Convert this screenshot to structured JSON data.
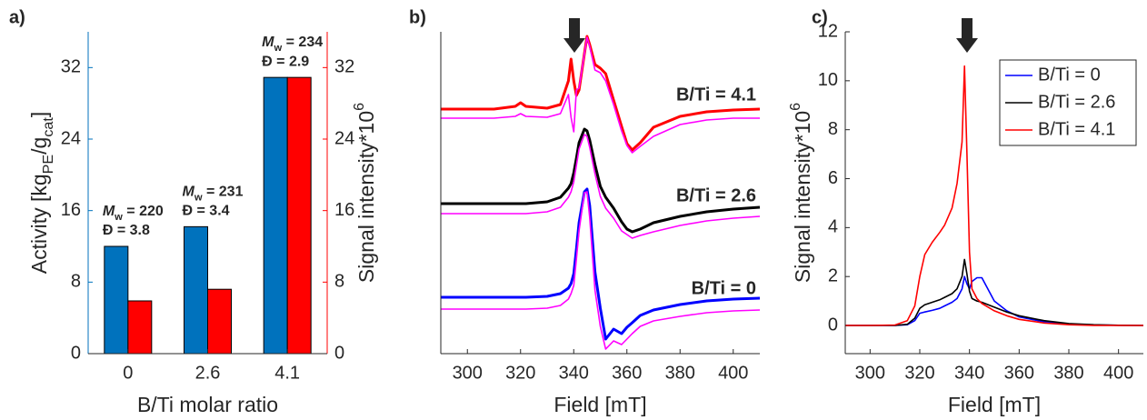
{
  "chart_data": [
    {
      "type": "bar",
      "panel_label": "a)",
      "categories": [
        "0",
        "2.6",
        "4.1"
      ],
      "xlabel": "B/Ti molar ratio",
      "ylabel": [
        {
          "text": "Activity [kg"
        },
        {
          "text": "PE",
          "sub": true
        },
        {
          "text": "/g"
        },
        {
          "text": "cat",
          "sub": true
        },
        {
          "text": "]"
        }
      ],
      "y2label": [
        {
          "text": "Signal intensity*10"
        },
        {
          "text": "6",
          "sup": true
        }
      ],
      "ycolor": "#0072bd",
      "y2color": "#ff0000",
      "ylim": [
        0,
        36
      ],
      "yticks": [
        0,
        8,
        16,
        24,
        32
      ],
      "y2lim": [
        0,
        36
      ],
      "y2ticks": [
        0,
        8,
        16,
        24,
        32
      ],
      "series": [
        {
          "color": "#0072bd",
          "values": [
            12,
            14.2,
            30.9
          ]
        },
        {
          "color": "#ff0000",
          "values": [
            5.9,
            7.2,
            30.9
          ],
          "axis": "y2"
        }
      ],
      "annotations": [
        {
          "line1": [
            {
              "text": "M",
              "italic": true
            },
            {
              "text": "w",
              "sub": true
            },
            {
              "text": " = 220"
            }
          ],
          "line2": "Đ = 3.8"
        },
        {
          "line1": [
            {
              "text": "M",
              "italic": true
            },
            {
              "text": "w",
              "sub": true
            },
            {
              "text": " = 231"
            }
          ],
          "line2": "Đ = 3.4"
        },
        {
          "line1": [
            {
              "text": "M",
              "italic": true
            },
            {
              "text": "w",
              "sub": true
            },
            {
              "text": " = 234"
            }
          ],
          "line2": "Đ = 2.9"
        }
      ]
    },
    {
      "type": "line",
      "panel_label": "b)",
      "xlabel": "Field [mT]",
      "x": [
        290,
        300,
        310,
        318,
        320,
        322,
        330,
        335,
        338,
        339,
        340,
        341,
        342,
        344,
        345,
        346,
        348,
        350,
        352,
        355,
        358,
        360,
        362,
        365,
        370,
        380,
        390,
        400,
        410
      ],
      "xlim": [
        290,
        410
      ],
      "xticks": [
        300,
        320,
        340,
        360,
        380,
        400
      ],
      "ylim": [
        0,
        354
      ],
      "labels": [
        "B/Ti = 4.1",
        "B/Ti = 2.6",
        "B/Ti = 0"
      ],
      "series": [
        {
          "color": "#ff0000",
          "values": [
            269,
            269,
            269,
            272,
            276,
            272,
            270,
            274,
            300,
            324,
            300,
            284,
            290,
            330,
            349,
            340,
            318,
            314,
            308,
            279,
            250,
            231,
            224,
            232,
            249,
            261,
            266,
            268,
            269
          ]
        },
        {
          "color": "#ff00ff",
          "values": [
            259,
            259,
            259,
            261,
            264,
            261,
            260,
            264,
            285,
            260,
            244,
            290,
            292,
            330,
            348,
            338,
            312,
            309,
            300,
            274,
            245,
            229,
            221,
            228,
            239,
            252,
            257,
            259,
            259
          ]
        },
        {
          "color": "#000000",
          "values": [
            165,
            165,
            165,
            165,
            165,
            165,
            167,
            172,
            182,
            187,
            199,
            215,
            232,
            247,
            245,
            235,
            208,
            184,
            172,
            160,
            145,
            137,
            134,
            137,
            144,
            151,
            156,
            159,
            161
          ]
        },
        {
          "color": "#ff00ff",
          "values": [
            154,
            154,
            154,
            154,
            154,
            154,
            156,
            161,
            172,
            178,
            189,
            207,
            225,
            241,
            239,
            227,
            198,
            173,
            160,
            149,
            135,
            131,
            127,
            130,
            134,
            141,
            146,
            149,
            151
          ]
        },
        {
          "color": "#0000ff",
          "values": [
            62,
            62,
            62,
            62,
            62,
            62,
            63,
            66,
            72,
            77,
            88,
            115,
            144,
            178,
            181,
            163,
            90,
            50,
            16,
            27,
            22,
            29,
            34,
            42,
            48,
            54,
            58,
            60,
            61
          ]
        },
        {
          "color": "#ff00ff",
          "values": [
            49,
            49,
            49,
            49,
            49,
            49,
            50,
            53,
            60,
            66,
            75,
            104,
            135,
            177,
            178,
            150,
            70,
            30,
            5,
            14,
            10,
            16,
            22,
            30,
            36,
            41,
            45,
            47,
            48
          ]
        }
      ]
    },
    {
      "type": "line",
      "panel_label": "c)",
      "xlabel": "Field [mT]",
      "ylabel": [
        {
          "text": "Signal intensity*10"
        },
        {
          "text": "6",
          "sup": true
        }
      ],
      "x": [
        290,
        300,
        310,
        315,
        318,
        320,
        322,
        325,
        328,
        330,
        333,
        335,
        337,
        338,
        339,
        340,
        341,
        343,
        345,
        350,
        355,
        360,
        370,
        380,
        390,
        400,
        410
      ],
      "xlim": [
        290,
        410
      ],
      "xticks": [
        300,
        320,
        340,
        360,
        380,
        400
      ],
      "ylim": [
        -1.15,
        12
      ],
      "yticks": [
        0,
        2,
        4,
        6,
        8,
        10,
        12
      ],
      "legend": "upper right",
      "series": [
        {
          "name": "B/Ti = 0",
          "color": "#0000ff",
          "values": [
            0,
            0,
            0,
            0.03,
            0.2,
            0.5,
            0.55,
            0.62,
            0.7,
            0.8,
            0.95,
            1.1,
            1.5,
            2.0,
            1.7,
            1.5,
            1.8,
            1.95,
            1.95,
            1.0,
            0.6,
            0.35,
            0.15,
            0.05,
            0.02,
            0.01,
            0
          ]
        },
        {
          "name": "B/Ti = 2.6",
          "color": "#000000",
          "values": [
            0,
            0,
            0,
            0.05,
            0.3,
            0.7,
            0.85,
            0.95,
            1.05,
            1.15,
            1.3,
            1.5,
            2.0,
            2.7,
            2.1,
            1.4,
            1.1,
            1.0,
            0.95,
            0.75,
            0.55,
            0.4,
            0.2,
            0.08,
            0.03,
            0.01,
            0
          ]
        },
        {
          "name": "B/Ti = 4.1",
          "color": "#ff0000",
          "values": [
            0,
            0,
            0.02,
            0.2,
            0.8,
            2,
            2.9,
            3.4,
            3.8,
            4.1,
            4.8,
            5.8,
            7.5,
            10.6,
            7,
            3,
            1.5,
            1.1,
            0.9,
            0.6,
            0.4,
            0.25,
            0.1,
            0.03,
            0,
            0,
            0
          ]
        }
      ]
    }
  ]
}
